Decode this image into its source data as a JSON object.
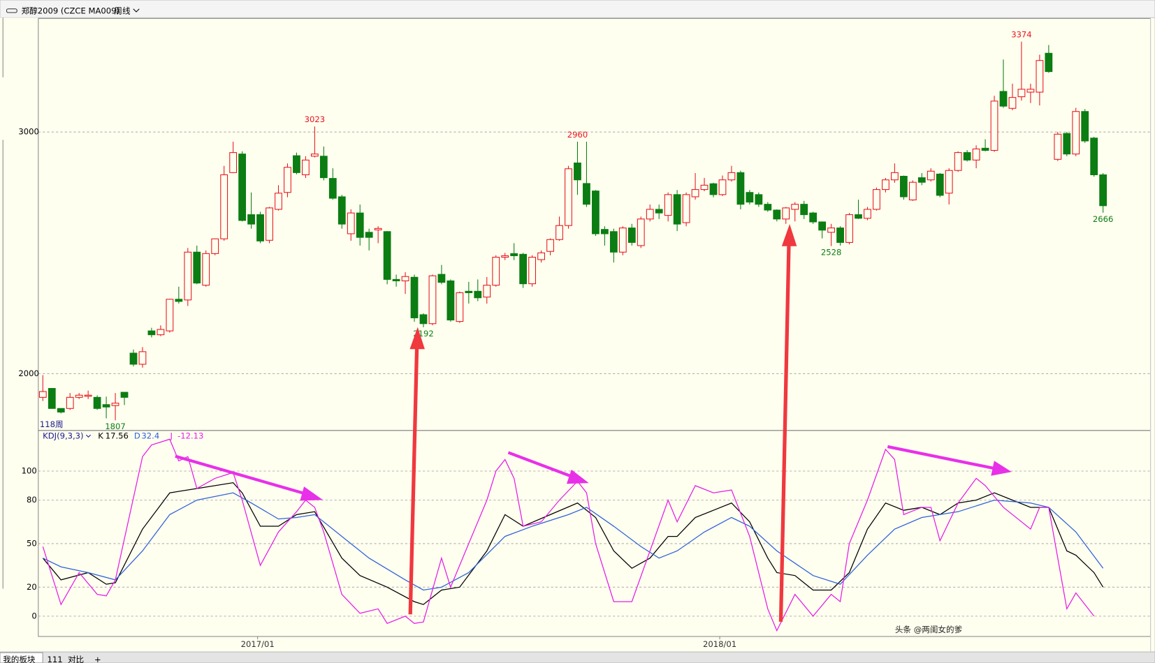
{
  "header": {
    "symbol": "郑醇2009 (CZCE MA009)",
    "period": "周线"
  },
  "chart_data": [
    {
      "type": "candlestick",
      "count_label": "118周",
      "xlim": [
        -0.5,
        122
      ],
      "ylim": [
        1765,
        3470
      ],
      "yticks": [
        2000,
        3000
      ],
      "grid": true,
      "up_color": "#e8141b",
      "down_color": "#0b7d12",
      "open": [
        1902,
        1939,
        1856,
        1856,
        1902,
        1911,
        1902,
        1872,
        1868,
        1923,
        2085,
        2039,
        2177,
        2161,
        2177,
        2308,
        2305,
        2503,
        2366,
        2497,
        2558,
        2832,
        2909,
        2658,
        2658,
        2552,
        2680,
        2750,
        2902,
        2823,
        2900,
        2900,
        2808,
        2732,
        2579,
        2665,
        2585,
        2595,
        2588,
        2390,
        2384,
        2399,
        2244,
        2207,
        2411,
        2384,
        2216,
        2341,
        2341,
        2317,
        2366,
        2482,
        2497,
        2494,
        2372,
        2472,
        2506,
        2555,
        2613,
        2872,
        2787,
        2756,
        2597,
        2588,
        2503,
        2603,
        2530,
        2640,
        2680,
        2655,
        2741,
        2625,
        2732,
        2762,
        2786,
        2741,
        2802,
        2832,
        2750,
        2741,
        2701,
        2677,
        2640,
        2680,
        2701,
        2665,
        2628,
        2585,
        2603,
        2543,
        2658,
        2643,
        2680,
        2762,
        2802,
        2817,
        2719,
        2811,
        2802,
        2826,
        2747,
        2841,
        2915,
        2884,
        2933,
        2924,
        3168,
        3098,
        3146,
        3165,
        3165,
        3326,
        2887,
        2994,
        2909,
        3085,
        2975,
        2823
      ],
      "high": [
        1994,
        1939,
        1856,
        1920,
        1920,
        1930,
        1910,
        1905,
        1920,
        1923,
        2100,
        2110,
        2190,
        2200,
        2310,
        2360,
        2520,
        2530,
        2510,
        2560,
        2860,
        2960,
        2920,
        2750,
        2670,
        2690,
        2780,
        2870,
        2915,
        2900,
        3023,
        2940,
        2850,
        2740,
        2680,
        2700,
        2600,
        2610,
        2590,
        2410,
        2420,
        2410,
        2250,
        2410,
        2450,
        2390,
        2340,
        2380,
        2390,
        2400,
        2490,
        2500,
        2540,
        2500,
        2490,
        2510,
        2560,
        2650,
        2860,
        2960,
        2960,
        2760,
        2610,
        2600,
        2610,
        2620,
        2650,
        2700,
        2700,
        2750,
        2760,
        2750,
        2830,
        2810,
        2790,
        2820,
        2860,
        2840,
        2760,
        2750,
        2710,
        2680,
        2690,
        2710,
        2715,
        2670,
        2630,
        2620,
        2610,
        2665,
        2720,
        2690,
        2770,
        2810,
        2870,
        2820,
        2800,
        2830,
        2850,
        2830,
        2850,
        2920,
        2925,
        2945,
        2970,
        3150,
        3300,
        3200,
        3374,
        3200,
        3320,
        3360,
        3000,
        3000,
        3100,
        3095,
        2980,
        2830
      ],
      "low": [
        1887,
        1856,
        1835,
        1850,
        1895,
        1895,
        1850,
        1815,
        1807,
        1870,
        2030,
        2025,
        2150,
        2155,
        2170,
        2290,
        2280,
        2370,
        2360,
        2490,
        2550,
        2830,
        2630,
        2600,
        2540,
        2540,
        2675,
        2730,
        2825,
        2810,
        2895,
        2800,
        2720,
        2600,
        2550,
        2530,
        2510,
        2540,
        2370,
        2360,
        2330,
        2215,
        2192,
        2200,
        2370,
        2215,
        2210,
        2290,
        2300,
        2290,
        2360,
        2470,
        2470,
        2355,
        2360,
        2460,
        2490,
        2550,
        2600,
        2740,
        2690,
        2570,
        2530,
        2460,
        2490,
        2530,
        2520,
        2630,
        2640,
        2630,
        2590,
        2610,
        2720,
        2755,
        2730,
        2735,
        2795,
        2680,
        2700,
        2690,
        2670,
        2630,
        2620,
        2630,
        2640,
        2620,
        2560,
        2528,
        2530,
        2535,
        2640,
        2635,
        2675,
        2750,
        2790,
        2720,
        2715,
        2780,
        2795,
        2730,
        2700,
        2835,
        2878,
        2850,
        2920,
        2918,
        3100,
        3090,
        3130,
        3120,
        3110,
        3245,
        2880,
        2900,
        2900,
        2955,
        2815,
        2666
      ],
      "close": [
        1926,
        1856,
        1841,
        1902,
        1911,
        1911,
        1856,
        1862,
        1878,
        1902,
        2039,
        2091,
        2161,
        2183,
        2308,
        2299,
        2503,
        2375,
        2497,
        2558,
        2823,
        2915,
        2634,
        2619,
        2549,
        2686,
        2747,
        2854,
        2832,
        2884,
        2909,
        2811,
        2726,
        2619,
        2665,
        2564,
        2564,
        2601,
        2390,
        2384,
        2402,
        2231,
        2207,
        2405,
        2378,
        2222,
        2335,
        2335,
        2314,
        2366,
        2482,
        2488,
        2488,
        2372,
        2482,
        2500,
        2555,
        2613,
        2848,
        2802,
        2701,
        2579,
        2579,
        2503,
        2603,
        2543,
        2640,
        2680,
        2665,
        2741,
        2619,
        2741,
        2762,
        2780,
        2741,
        2802,
        2832,
        2701,
        2710,
        2701,
        2677,
        2640,
        2686,
        2701,
        2658,
        2628,
        2594,
        2603,
        2543,
        2658,
        2643,
        2680,
        2762,
        2802,
        2832,
        2732,
        2792,
        2792,
        2838,
        2738,
        2841,
        2915,
        2884,
        2930,
        2924,
        3128,
        3107,
        3143,
        3177,
        3177,
        3296,
        3250,
        2991,
        2909,
        3085,
        2963,
        2823,
        2695
      ],
      "annotations": [
        {
          "x": 8,
          "text": "1807"
        },
        {
          "x": 30,
          "text": "3023"
        },
        {
          "x": 42,
          "text": "2192"
        },
        {
          "x": 59,
          "text": "2960"
        },
        {
          "x": 87,
          "text": "2528"
        },
        {
          "x": 108,
          "text": "3374"
        },
        {
          "x": 117,
          "text": "2666"
        }
      ]
    },
    {
      "type": "line",
      "title": "KDJ(9,3,3)",
      "xlim": [
        -0.5,
        122
      ],
      "ylim": [
        -14,
        127
      ],
      "yticks": [
        0,
        20,
        50,
        80,
        100
      ],
      "grid": true,
      "xticks": [
        {
          "value": 23.7,
          "label": "2017/01"
        },
        {
          "value": 74.7,
          "label": "2018/01"
        }
      ],
      "series": [
        {
          "name": "K",
          "readout": 17.56,
          "color": "#000000",
          "x": [
            0,
            2,
            5,
            7,
            8,
            11,
            14,
            17,
            21,
            22,
            24,
            26,
            28,
            30,
            33,
            35,
            38,
            41,
            42,
            44,
            46,
            49,
            51,
            53,
            56,
            59,
            61,
            63,
            65,
            67,
            69,
            70,
            72,
            74,
            76,
            78,
            80,
            81,
            83,
            85,
            87,
            89,
            91,
            93,
            95,
            97,
            99,
            101,
            103,
            105,
            107,
            109,
            111,
            113,
            114,
            116,
            117
          ],
          "values": [
            40,
            25,
            30,
            22,
            23,
            60,
            85,
            88,
            92,
            85,
            62,
            62,
            70,
            72,
            40,
            28,
            20,
            10,
            8,
            18,
            20,
            45,
            70,
            62,
            70,
            78,
            68,
            45,
            33,
            40,
            55,
            55,
            68,
            73,
            78,
            65,
            40,
            30,
            28,
            18,
            18,
            30,
            60,
            78,
            73,
            75,
            70,
            78,
            80,
            85,
            80,
            75,
            75,
            45,
            42,
            30,
            20
          ]
        },
        {
          "name": "D",
          "readout": 32.4,
          "color": "#2f62d8",
          "x": [
            0,
            2,
            5,
            8,
            11,
            14,
            17,
            21,
            23,
            26,
            28,
            30,
            33,
            36,
            40,
            42,
            44,
            47,
            51,
            54,
            58,
            60,
            63,
            66,
            68,
            70,
            73,
            76,
            78,
            81,
            85,
            88,
            91,
            94,
            97,
            101,
            105,
            109,
            111,
            114,
            117
          ],
          "values": [
            40,
            34,
            30,
            25,
            45,
            70,
            80,
            85,
            78,
            67,
            68,
            70,
            55,
            40,
            25,
            18,
            20,
            30,
            55,
            62,
            70,
            75,
            62,
            48,
            40,
            45,
            58,
            68,
            62,
            45,
            28,
            22,
            42,
            60,
            68,
            72,
            80,
            78,
            75,
            58,
            33
          ]
        },
        {
          "name": "J",
          "readout": -12.13,
          "color": "#e61ee6",
          "x": [
            0,
            2,
            4,
            6,
            7,
            8,
            11,
            12,
            14,
            15,
            16,
            17,
            19,
            21,
            22,
            24,
            26,
            28,
            29,
            30,
            31,
            33,
            35,
            37,
            38,
            40,
            41,
            42,
            44,
            45,
            47,
            49,
            50,
            51,
            52,
            53,
            55,
            57,
            59,
            60,
            61,
            63,
            65,
            67,
            69,
            70,
            72,
            74,
            76,
            78,
            80,
            81,
            83,
            85,
            87,
            88,
            89,
            91,
            93,
            94,
            95,
            97,
            98,
            99,
            101,
            103,
            104,
            106,
            109,
            110,
            111,
            113,
            114,
            116
          ],
          "values": [
            48,
            8,
            30,
            15,
            14,
            25,
            110,
            118,
            122,
            107,
            110,
            88,
            95,
            99,
            80,
            35,
            58,
            72,
            80,
            75,
            58,
            15,
            2,
            5,
            -5,
            0,
            -5,
            -4,
            40,
            20,
            50,
            80,
            100,
            108,
            95,
            62,
            65,
            80,
            93,
            85,
            50,
            10,
            10,
            45,
            80,
            65,
            90,
            85,
            87,
            55,
            5,
            -10,
            15,
            0,
            15,
            10,
            50,
            80,
            115,
            108,
            70,
            75,
            75,
            52,
            78,
            95,
            90,
            75,
            60,
            75,
            75,
            5,
            16,
            0
          ]
        }
      ]
    }
  ],
  "tabs": [
    "我的板块",
    "111",
    "对比",
    "+"
  ],
  "watermark": "头条 @两闺女的爹"
}
